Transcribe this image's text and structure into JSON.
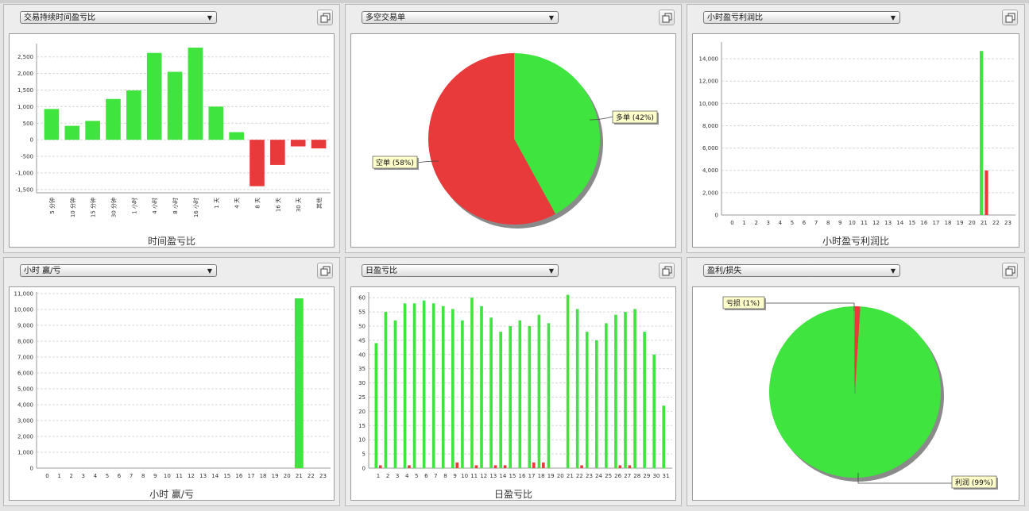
{
  "colors": {
    "profit": "#3fe43f",
    "loss": "#e8393b",
    "grid": "#d8d8d8",
    "callout_bg": "#ffffcc"
  },
  "panels": {
    "time_pl": {
      "dropdown": "交易持续时间盈亏比",
      "caption": "时间盈亏比"
    },
    "long_short": {
      "dropdown": "多空交易单"
    },
    "hour_pl_ratio": {
      "dropdown": "小时盈亏利润比",
      "caption": "小时盈亏利润比"
    },
    "hour_win_loss": {
      "dropdown": "小时 赢/亏",
      "caption": "小时 赢/亏"
    },
    "daily_pl": {
      "dropdown": "日盈亏比",
      "caption": "日盈亏比"
    },
    "profit_loss": {
      "dropdown": "盈利/损失"
    }
  },
  "chart_data": [
    {
      "id": "time_pl",
      "type": "bar",
      "categories": [
        "5 分钟",
        "10 分钟",
        "15 分钟",
        "30 分钟",
        "1 小时",
        "4 小时",
        "8 小时",
        "16 小时",
        "1 天",
        "4 天",
        "8 天",
        "16 天",
        "30 天",
        "其他"
      ],
      "values": [
        930,
        420,
        570,
        1230,
        1490,
        2620,
        2050,
        2780,
        1000,
        230,
        -1400,
        -760,
        -200,
        -260
      ],
      "ylim": [
        -1600,
        2900
      ],
      "yticks": [
        -1500,
        -1000,
        -500,
        0,
        500,
        1000,
        1500,
        2000,
        2500
      ],
      "ytick_labels": [
        "-1,500",
        "-1,000",
        "-500",
        "0",
        "500",
        "1,000",
        "1,500",
        "2,000",
        "2,500"
      ],
      "xlabel": "时间盈亏比"
    },
    {
      "id": "long_short",
      "type": "pie",
      "slices": [
        {
          "label": "多单",
          "pct": 42,
          "text": "多单 (42%)",
          "color": "#3fe43f"
        },
        {
          "label": "空单",
          "pct": 58,
          "text": "空单 (58%)",
          "color": "#e8393b"
        }
      ]
    },
    {
      "id": "hour_pl_ratio",
      "type": "bar",
      "categories": [
        "0",
        "1",
        "2",
        "3",
        "4",
        "5",
        "6",
        "7",
        "8",
        "9",
        "10",
        "11",
        "12",
        "13",
        "14",
        "15",
        "16",
        "17",
        "18",
        "19",
        "20",
        "21",
        "22",
        "23"
      ],
      "series": [
        {
          "name": "profit",
          "values": [
            0,
            0,
            0,
            0,
            0,
            0,
            0,
            0,
            0,
            0,
            0,
            0,
            0,
            0,
            0,
            0,
            0,
            0,
            0,
            0,
            0,
            14700,
            0,
            0
          ]
        },
        {
          "name": "loss",
          "values": [
            0,
            0,
            0,
            0,
            0,
            0,
            0,
            0,
            0,
            0,
            0,
            0,
            0,
            0,
            0,
            0,
            0,
            0,
            0,
            0,
            0,
            4000,
            0,
            0
          ]
        }
      ],
      "ylim": [
        0,
        15500
      ],
      "yticks": [
        0,
        2000,
        4000,
        6000,
        8000,
        10000,
        12000,
        14000
      ],
      "ytick_labels": [
        "0",
        "2,000",
        "4,000",
        "6,000",
        "8,000",
        "10,000",
        "12,000",
        "14,000"
      ],
      "xlabel": "小时盈亏利润比"
    },
    {
      "id": "hour_win_loss",
      "type": "bar",
      "categories": [
        "0",
        "1",
        "2",
        "3",
        "4",
        "5",
        "6",
        "7",
        "8",
        "9",
        "10",
        "11",
        "12",
        "13",
        "14",
        "15",
        "16",
        "17",
        "18",
        "19",
        "20",
        "21",
        "22",
        "23"
      ],
      "series": [
        {
          "name": "win",
          "values": [
            0,
            0,
            0,
            0,
            0,
            0,
            0,
            0,
            0,
            0,
            0,
            0,
            0,
            0,
            0,
            0,
            0,
            0,
            0,
            0,
            0,
            10700,
            0,
            0
          ]
        }
      ],
      "ylim": [
        0,
        11100
      ],
      "yticks": [
        0,
        1000,
        2000,
        3000,
        4000,
        5000,
        6000,
        7000,
        8000,
        9000,
        10000,
        11000
      ],
      "ytick_labels": [
        "0",
        "1,000",
        "2,000",
        "3,000",
        "4,000",
        "5,000",
        "6,000",
        "7,000",
        "8,000",
        "9,000",
        "10,000",
        "11,000"
      ],
      "xlabel": "小时 赢/亏"
    },
    {
      "id": "daily_pl",
      "type": "bar",
      "categories": [
        "1",
        "2",
        "3",
        "4",
        "5",
        "6",
        "7",
        "8",
        "9",
        "10",
        "11",
        "12",
        "13",
        "14",
        "15",
        "16",
        "17",
        "18",
        "19",
        "20",
        "21",
        "22",
        "23",
        "24",
        "25",
        "26",
        "27",
        "28",
        "29",
        "30",
        "31"
      ],
      "series": [
        {
          "name": "win",
          "values": [
            44,
            55,
            52,
            58,
            58,
            59,
            58,
            57,
            56,
            52,
            60,
            57,
            53,
            48,
            50,
            52,
            50,
            54,
            51,
            0,
            61,
            56,
            48,
            45,
            51,
            54,
            55,
            56,
            48,
            40,
            22
          ]
        },
        {
          "name": "loss",
          "values": [
            1,
            0,
            0,
            1,
            0,
            0,
            0,
            0,
            2,
            0,
            1,
            0,
            1,
            1,
            0,
            0,
            2,
            2,
            0,
            0,
            0,
            1,
            0,
            0,
            0,
            1,
            1,
            0,
            0,
            0,
            0
          ]
        }
      ],
      "ylim": [
        0,
        62
      ],
      "yticks": [
        0,
        5,
        10,
        15,
        20,
        25,
        30,
        35,
        40,
        45,
        50,
        55,
        60
      ],
      "ytick_labels": [
        "0",
        "5",
        "10",
        "15",
        "20",
        "25",
        "30",
        "35",
        "40",
        "45",
        "50",
        "55",
        "60"
      ],
      "xlabel": "日盈亏比"
    },
    {
      "id": "profit_loss",
      "type": "pie",
      "slices": [
        {
          "label": "亏损",
          "pct": 1,
          "text": "亏损 (1%)",
          "color": "#e8393b"
        },
        {
          "label": "利润",
          "pct": 99,
          "text": "利润 (99%)",
          "color": "#3fe43f"
        }
      ]
    }
  ]
}
